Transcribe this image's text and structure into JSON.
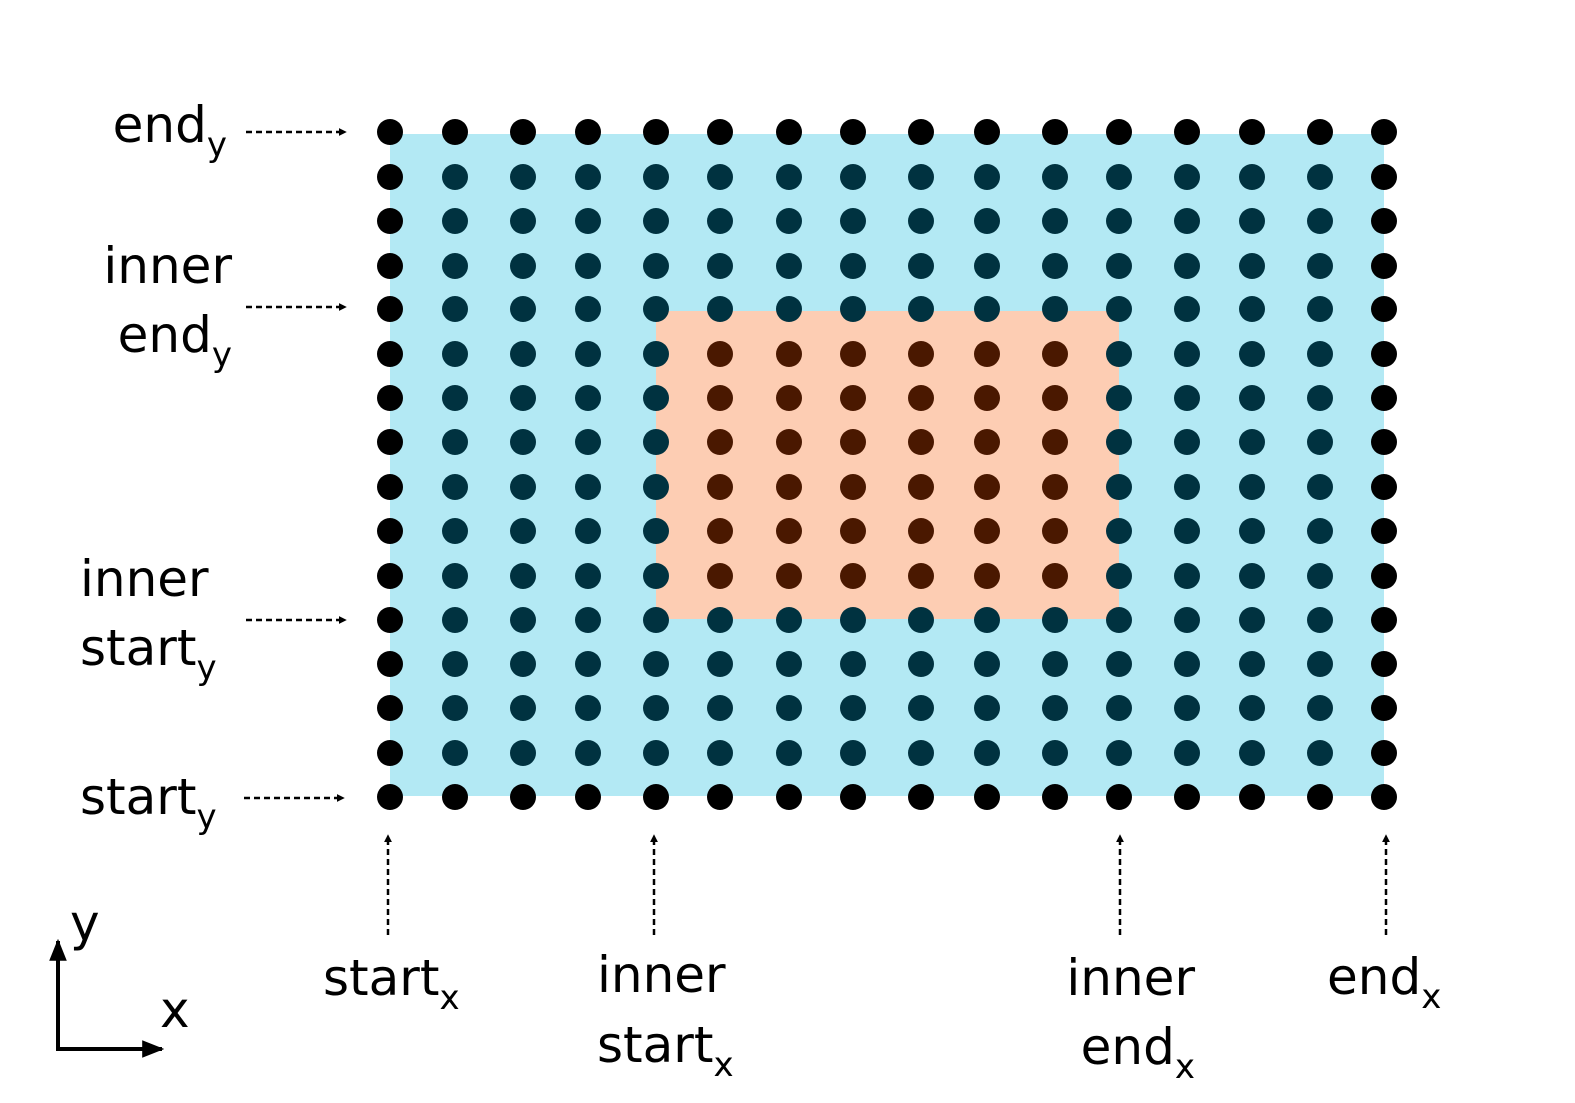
{
  "grid": {
    "columns": 16,
    "rows": 16,
    "inner_columns": [
      4,
      11
    ],
    "inner_rows": [
      4,
      11
    ]
  },
  "colors": {
    "outer_fill": "#b3e9f4",
    "inner_fill": "#fdcdb3",
    "dot": "#000000",
    "dot_on_outer": "#003240",
    "dot_on_inner": "#4a1800",
    "arrow": "#000000"
  },
  "labels": {
    "end_y": {
      "line1": "",
      "base": "end",
      "sub": "y"
    },
    "inner_end_y": {
      "line1": "inner",
      "base": "end",
      "sub": "y"
    },
    "inner_start_y": {
      "line1": "inner",
      "base": "start",
      "sub": "y"
    },
    "start_y": {
      "line1": "",
      "base": "start",
      "sub": "y"
    },
    "start_x": {
      "line1": "",
      "base": "start",
      "sub": "x"
    },
    "inner_start_x": {
      "line1": "inner",
      "base": "start",
      "sub": "x"
    },
    "inner_end_x": {
      "line1": "inner",
      "base": "end",
      "sub": "x"
    },
    "end_x": {
      "line1": "",
      "base": "end",
      "sub": "x"
    }
  },
  "axes": {
    "x_label": "x",
    "y_label": "y"
  }
}
